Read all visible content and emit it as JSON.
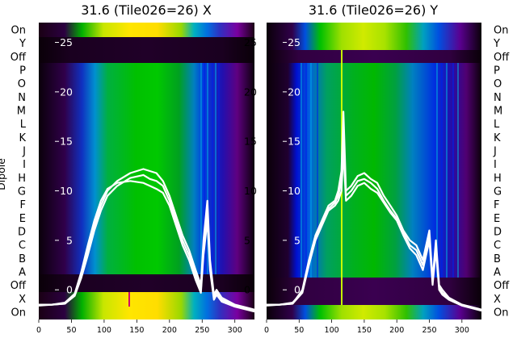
{
  "chart_data": [
    {
      "type": "heatmap",
      "title": "31.6 (Tile026=26) X",
      "ylabel": "Dipole",
      "xlim": [
        0,
        330
      ],
      "ylim": [
        -3,
        27
      ],
      "xticks": [
        0,
        50,
        100,
        150,
        200,
        250,
        300
      ],
      "yticks": [
        0,
        5,
        10,
        15,
        20,
        25
      ],
      "dipole_labels": [
        "On",
        "Y",
        "Off",
        "P",
        "O",
        "N",
        "M",
        "L",
        "K",
        "J",
        "I",
        "H",
        "G",
        "F",
        "E",
        "D",
        "C",
        "B",
        "A",
        "Off",
        "X",
        "On"
      ],
      "series": [
        {
          "x": [
            0,
            20,
            40,
            55,
            65,
            75,
            85,
            95,
            105,
            120,
            140,
            160,
            170,
            180,
            190,
            200,
            210,
            220,
            230,
            240,
            248,
            252,
            258,
            262,
            268,
            272,
            280,
            300,
            330
          ],
          "y": [
            -1.5,
            -1.5,
            -1.4,
            -0.5,
            1.5,
            4.0,
            6.5,
            8.5,
            10.0,
            11.0,
            11.8,
            12.2,
            12.0,
            11.8,
            11.0,
            9.5,
            7.5,
            5.5,
            4.0,
            2.0,
            0.5,
            5.0,
            9.0,
            3.0,
            -0.5,
            0.0,
            -0.8,
            -1.5,
            -2.0
          ]
        },
        {
          "x": [
            0,
            20,
            40,
            55,
            65,
            75,
            85,
            95,
            105,
            120,
            140,
            160,
            170,
            180,
            190,
            200,
            210,
            220,
            230,
            240,
            248,
            252,
            258,
            262,
            268,
            272,
            280,
            300,
            330
          ],
          "y": [
            -1.6,
            -1.5,
            -1.4,
            -0.6,
            1.2,
            3.5,
            6.0,
            8.0,
            9.5,
            10.5,
            11.3,
            11.6,
            11.2,
            11.0,
            10.5,
            9.0,
            7.0,
            5.0,
            3.5,
            1.5,
            0.0,
            4.0,
            8.0,
            2.5,
            -0.8,
            -0.2,
            -1.0,
            -1.6,
            -2.1
          ]
        },
        {
          "x": [
            0,
            20,
            40,
            55,
            65,
            75,
            85,
            95,
            105,
            120,
            140,
            160,
            170,
            180,
            190,
            200,
            210,
            220,
            230,
            240,
            248,
            252,
            258,
            262,
            268,
            272,
            280,
            300,
            330
          ],
          "y": [
            -1.5,
            -1.5,
            -1.3,
            -0.4,
            1.8,
            4.5,
            7.0,
            9.0,
            10.2,
            10.8,
            11.0,
            10.8,
            10.5,
            10.2,
            9.8,
            8.5,
            6.5,
            4.5,
            3.0,
            1.0,
            -0.3,
            3.5,
            7.0,
            2.0,
            -1.0,
            -0.5,
            -1.2,
            -1.7,
            -2.2
          ]
        }
      ]
    },
    {
      "type": "heatmap",
      "title": "31.6 (Tile026=26) Y",
      "xlim": [
        0,
        330
      ],
      "ylim": [
        -3,
        27
      ],
      "xticks": [
        0,
        50,
        100,
        150,
        200,
        250,
        300
      ],
      "yticks": [
        0,
        5,
        10,
        15,
        20,
        25
      ],
      "dipole_labels": [
        "On",
        "Y",
        "Off",
        "P",
        "O",
        "N",
        "M",
        "L",
        "K",
        "J",
        "I",
        "H",
        "G",
        "F",
        "E",
        "D",
        "C",
        "B",
        "A",
        "Off",
        "X",
        "On"
      ],
      "series": [
        {
          "x": [
            0,
            20,
            40,
            55,
            65,
            75,
            85,
            95,
            105,
            110,
            115,
            118,
            122,
            130,
            140,
            150,
            160,
            170,
            180,
            190,
            200,
            210,
            220,
            230,
            240,
            250,
            255,
            260,
            265,
            270,
            280,
            300,
            330
          ],
          "y": [
            -1.5,
            -1.5,
            -1.4,
            0.0,
            3.0,
            5.5,
            7.0,
            8.5,
            9.0,
            10.0,
            12.0,
            18.0,
            10.0,
            10.5,
            11.5,
            11.8,
            11.2,
            10.8,
            9.5,
            8.5,
            7.5,
            6.0,
            5.0,
            4.5,
            3.0,
            6.0,
            1.0,
            5.0,
            0.5,
            0.0,
            -0.8,
            -1.5,
            -2.0
          ]
        },
        {
          "x": [
            0,
            20,
            40,
            55,
            65,
            75,
            85,
            95,
            105,
            110,
            115,
            118,
            122,
            130,
            140,
            150,
            160,
            170,
            180,
            190,
            200,
            210,
            220,
            230,
            240,
            250,
            255,
            260,
            265,
            270,
            280,
            300,
            330
          ],
          "y": [
            -1.6,
            -1.5,
            -1.4,
            -0.3,
            2.5,
            5.0,
            6.5,
            8.0,
            8.5,
            9.0,
            10.0,
            14.0,
            9.0,
            9.5,
            10.5,
            10.8,
            10.2,
            9.8,
            8.8,
            7.8,
            7.0,
            5.5,
            4.2,
            3.5,
            2.0,
            5.0,
            0.5,
            4.0,
            0.0,
            -0.5,
            -1.0,
            -1.6,
            -2.1
          ]
        },
        {
          "x": [
            0,
            20,
            40,
            55,
            65,
            75,
            85,
            95,
            105,
            110,
            115,
            118,
            122,
            130,
            140,
            150,
            160,
            170,
            180,
            190,
            200,
            210,
            220,
            230,
            240,
            250,
            255,
            260,
            265,
            270,
            280,
            300,
            330
          ],
          "y": [
            -1.5,
            -1.5,
            -1.3,
            -0.2,
            2.8,
            5.2,
            6.8,
            8.2,
            8.8,
            9.5,
            11.0,
            16.0,
            9.5,
            10.0,
            11.0,
            11.2,
            10.8,
            10.2,
            9.0,
            8.0,
            7.2,
            5.8,
            4.5,
            4.0,
            2.5,
            5.5,
            0.8,
            4.5,
            0.2,
            -0.3,
            -0.9,
            -1.5,
            -2.0
          ]
        }
      ]
    }
  ]
}
